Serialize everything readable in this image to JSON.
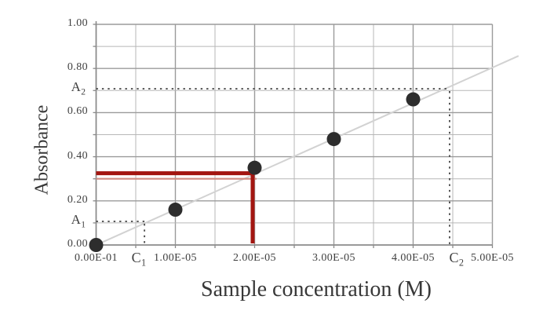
{
  "chart_data": {
    "type": "scatter",
    "title": "",
    "xlabel": "Sample concentration (M)",
    "ylabel": "Absorbance",
    "xlim": [
      0,
      5e-05
    ],
    "ylim": [
      0,
      1.0
    ],
    "grid": "major and minor gridlines on",
    "x_major_step": 1e-05,
    "x_minor_step": 5e-06,
    "y_major_step": 0.2,
    "y_minor_step": 0.1,
    "x_ticks": {
      "values": [
        0,
        1e-05,
        2e-05,
        3e-05,
        4e-05,
        5e-05
      ],
      "labels": [
        "0.00E-01",
        "1.00E-05",
        "2.00E-05",
        "3.00E-05",
        "4.00E-05",
        "5.00E-05"
      ]
    },
    "y_ticks": {
      "values": [
        0.0,
        0.2,
        0.4,
        0.6,
        0.8,
        1.0
      ],
      "labels": [
        "0.00",
        "0.20",
        "0.40",
        "0.60",
        "0.80",
        "1.00"
      ]
    },
    "points": {
      "x": [
        0,
        1e-05,
        2e-05,
        3e-05,
        4e-05
      ],
      "y": [
        0.0,
        0.16,
        0.35,
        0.48,
        0.66
      ]
    },
    "trendline": {
      "x": [
        0,
        5.33e-05
      ],
      "y": [
        0,
        0.857
      ]
    },
    "annotations": {
      "A1": {
        "label": "A",
        "sub": "1",
        "value": 0.107
      },
      "A2": {
        "label": "A",
        "sub": "2",
        "value": 0.708
      },
      "C1": {
        "label": "C",
        "sub": "1",
        "value": 6.1e-06
      },
      "C2": {
        "label": "C",
        "sub": "2",
        "value": 4.46e-05
      }
    },
    "red_marker": {
      "x": 1.975e-05,
      "y": 0.325,
      "echo_y": 0.3
    }
  },
  "colors": {
    "background": "#ffffff",
    "grid_major": "#9b9b9b",
    "grid_minor": "#b7b7b7",
    "axis": "#8a8a8a",
    "trend": "#d2d2d2",
    "dotted": "#4f4f4f",
    "point": "#2d2d2d",
    "red": "#a31510",
    "red_light": "#cf8a80",
    "text": "#3c3c3c"
  }
}
